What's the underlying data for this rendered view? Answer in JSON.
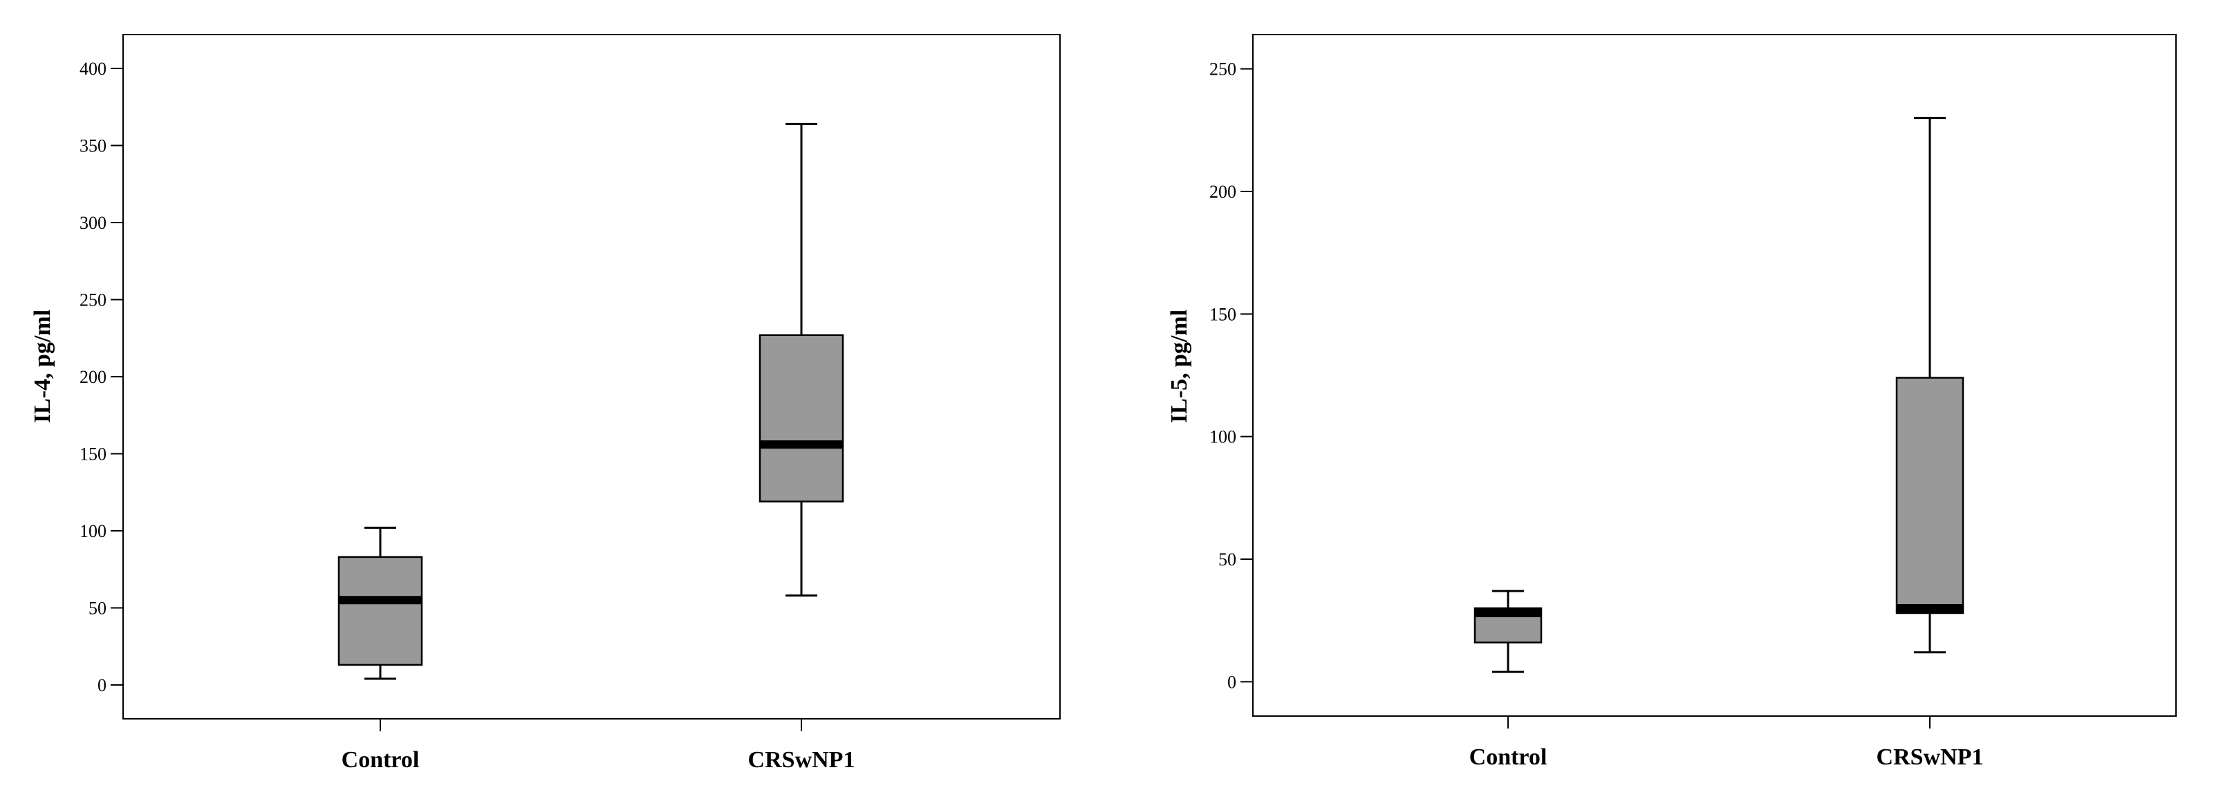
{
  "chart_data": [
    {
      "type": "boxplot",
      "ylabel": "IL-4, pg/ml",
      "xlabel": "",
      "ylim": [
        -22,
        422
      ],
      "yticks": [
        0,
        50,
        100,
        150,
        200,
        250,
        300,
        350,
        400
      ],
      "grid": false,
      "categories": [
        "Control",
        "CRSwNP1"
      ],
      "boxes": [
        {
          "category": "Control",
          "min": 4,
          "q1": 13,
          "median": 55,
          "q3": 83,
          "max": 102
        },
        {
          "category": "CRSwNP1",
          "min": 58,
          "q1": 119,
          "median": 156,
          "q3": 227,
          "max": 364
        }
      ],
      "box_color": "#999999"
    },
    {
      "type": "boxplot",
      "ylabel": "IL-5, pg/ml",
      "xlabel": "",
      "ylim": [
        -14,
        264
      ],
      "yticks": [
        0,
        50,
        100,
        150,
        200,
        250
      ],
      "grid": false,
      "categories": [
        "Control",
        "CRSwNP1"
      ],
      "boxes": [
        {
          "category": "Control",
          "min": 4,
          "q1": 16,
          "median": 28,
          "q3": 30,
          "max": 37
        },
        {
          "category": "CRSwNP1",
          "min": 12,
          "q1": 28,
          "median": 30,
          "q3": 124,
          "max": 230
        }
      ],
      "box_color": "#999999"
    }
  ]
}
